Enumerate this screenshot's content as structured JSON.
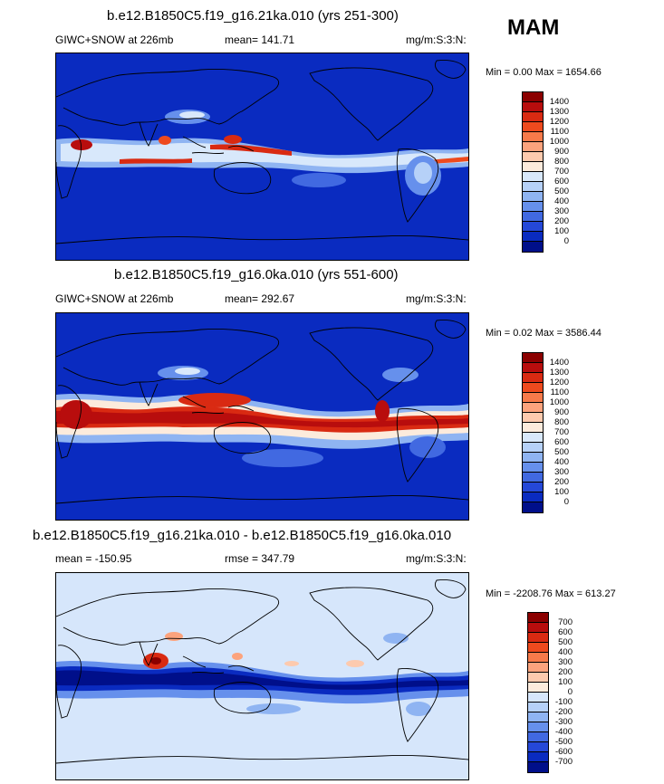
{
  "season": "MAM",
  "panels": [
    {
      "title": "b.e12.B1850C5.f19_g16.21ka.010 (yrs 251-300)",
      "left_label": "GIWC+SNOW at 226mb",
      "center_label": "mean= 141.71",
      "right_label": "mg/m:S:3:N:",
      "minmax": "Min =   0.00 Max = 1654.66",
      "background": "#0a2bc0",
      "levels": [
        "1400",
        "1300",
        "1200",
        "1100",
        "1000",
        "900",
        "800",
        "700",
        "600",
        "500",
        "400",
        "300",
        "200",
        "100",
        "0"
      ],
      "colors": [
        "#8b0000",
        "#b80d0d",
        "#d92a12",
        "#ee4a1e",
        "#f77a4a",
        "#fca37d",
        "#fdcaae",
        "#fcebdc",
        "#d8e8fb",
        "#b6d1f8",
        "#8fb4f2",
        "#6690ec",
        "#4169e1",
        "#2548d8",
        "#0a2bc0",
        "#000f8a"
      ]
    },
    {
      "title": "b.e12.B1850C5.f19_g16.0ka.010 (yrs 551-600)",
      "left_label": "GIWC+SNOW at 226mb",
      "center_label": "mean= 292.67",
      "right_label": "mg/m:S:3:N:",
      "minmax": "Min =   0.02 Max = 3586.44",
      "background": "#0a2bc0",
      "levels": [
        "1400",
        "1300",
        "1200",
        "1100",
        "1000",
        "900",
        "800",
        "700",
        "600",
        "500",
        "400",
        "300",
        "200",
        "100",
        "0"
      ],
      "colors": [
        "#8b0000",
        "#b80d0d",
        "#d92a12",
        "#ee4a1e",
        "#f77a4a",
        "#fca37d",
        "#fdcaae",
        "#fcebdc",
        "#d8e8fb",
        "#b6d1f8",
        "#8fb4f2",
        "#6690ec",
        "#4169e1",
        "#2548d8",
        "#0a2bc0",
        "#000f8a"
      ]
    },
    {
      "title": "b.e12.B1850C5.f19_g16.21ka.010 - b.e12.B1850C5.f19_g16.0ka.010",
      "left_label": "mean = -150.95",
      "center_label": "rmse = 347.79",
      "right_label": "mg/m:S:3:N:",
      "minmax": "Min = -2208.76 Max = 613.27",
      "background": "#d6e6fb",
      "levels": [
        "700",
        "600",
        "500",
        "400",
        "300",
        "200",
        "100",
        "0",
        "-100",
        "-200",
        "-300",
        "-400",
        "-500",
        "-600",
        "-700"
      ],
      "colors": [
        "#8b0000",
        "#b80d0d",
        "#d92a12",
        "#ee4a1e",
        "#f77a4a",
        "#fca37d",
        "#fdcaae",
        "#fcebdc",
        "#d6e6fb",
        "#b6d1f8",
        "#8fb4f2",
        "#6690ec",
        "#4169e1",
        "#2548d8",
        "#0a2bc0",
        "#000f8a"
      ]
    }
  ]
}
